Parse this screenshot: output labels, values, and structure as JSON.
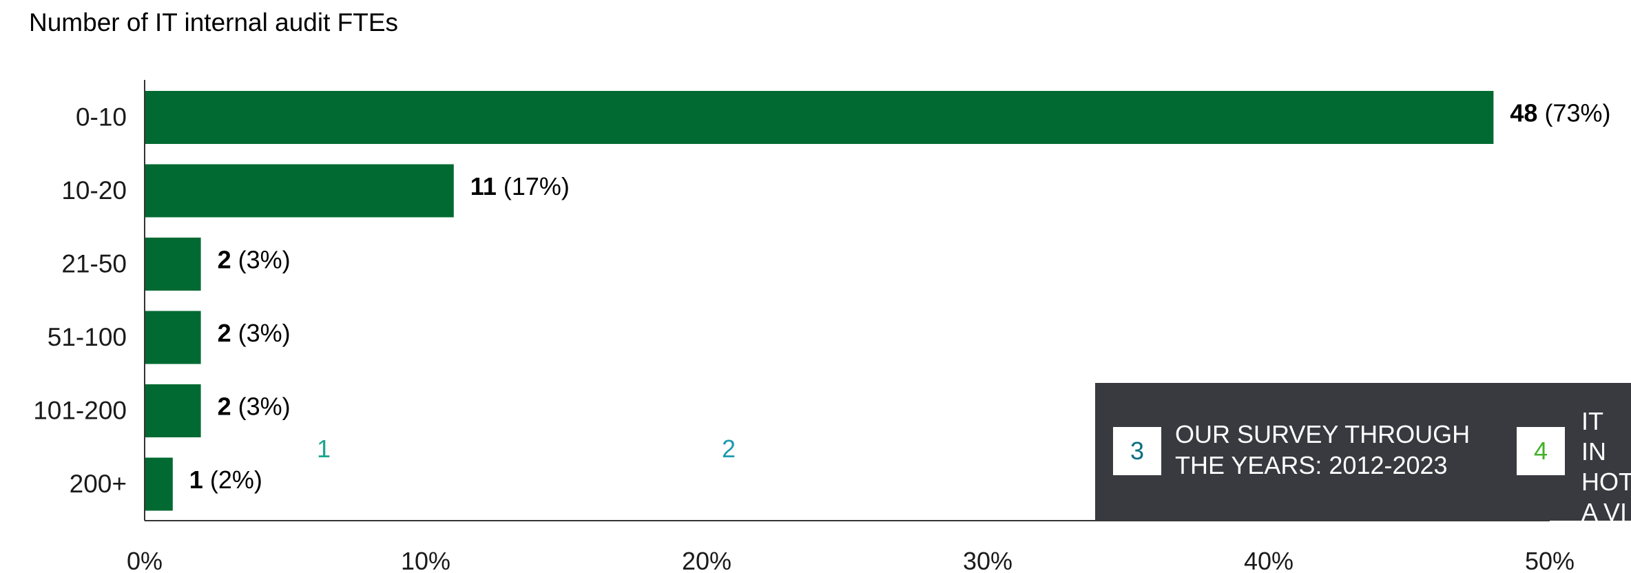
{
  "chart_data": {
    "type": "bar",
    "orientation": "horizontal",
    "title": "Number of IT internal audit FTEs",
    "categories": [
      "0-10",
      "10-20",
      "21-50",
      "51-100",
      "101-200",
      "200+"
    ],
    "counts": [
      "48",
      "11",
      "2",
      "2",
      "2",
      "1"
    ],
    "percent_labels": [
      "(73%)",
      "(17%)",
      "(3%)",
      "(3%)",
      "(3%)",
      "(2%)"
    ],
    "values": [
      48,
      11,
      2,
      2,
      2,
      1
    ],
    "x_ticks": [
      "0%",
      "10%",
      "20%",
      "30%",
      "40%",
      "50%"
    ],
    "xlim": [
      0,
      50
    ],
    "bar_color": "#006a32",
    "grid": false
  },
  "navigation": {
    "page_links": [
      {
        "number": "1",
        "color": "#1aa58f"
      },
      {
        "number": "2",
        "color": "#1f9ab0"
      }
    ],
    "cards": [
      {
        "number": "3",
        "label": "OUR SURVEY THROUGH\nTHE YEARS: 2012-2023",
        "color": "#0a6e80"
      },
      {
        "number": "4",
        "label": "IT IN\nHOT\nA VI",
        "color": "#43b02a"
      }
    ],
    "panel_color": "#393a40"
  }
}
